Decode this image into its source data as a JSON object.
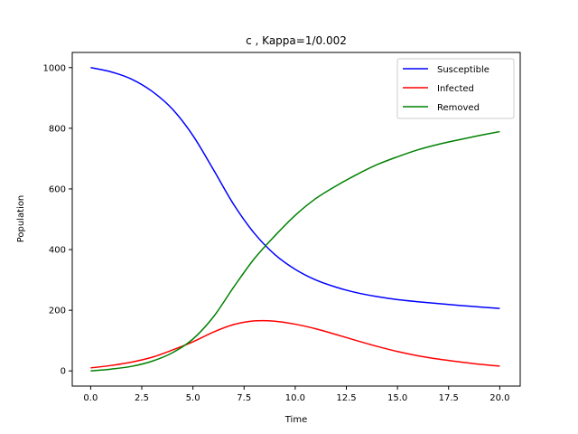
{
  "chart_data": {
    "type": "line",
    "title": "c , Kappa=1/0.002",
    "xlabel": "Time",
    "ylabel": "Population",
    "xlim": [
      -0.9,
      21.0
    ],
    "ylim": [
      -50,
      1050
    ],
    "xticks": [
      0.0,
      2.5,
      5.0,
      7.5,
      10.0,
      12.5,
      15.0,
      17.5,
      20.0
    ],
    "xtick_labels": [
      "0.0",
      "2.5",
      "5.0",
      "7.5",
      "10.0",
      "12.5",
      "15.0",
      "17.5",
      "20.0"
    ],
    "yticks": [
      0,
      200,
      400,
      600,
      800,
      1000
    ],
    "ytick_labels": [
      "0",
      "200",
      "400",
      "600",
      "800",
      "1000"
    ],
    "grid": false,
    "legend_position": "top-right",
    "x": [
      0,
      1,
      2,
      3,
      4,
      5,
      6,
      7,
      8,
      9,
      10,
      11,
      12,
      13,
      14,
      15,
      16,
      17,
      18,
      19,
      20
    ],
    "series": [
      {
        "name": "Susceptible",
        "color": "#0000ff",
        "values": [
          1000,
          986,
          962,
          922,
          863,
          776,
          664,
          548,
          454,
          384,
          335,
          300,
          276,
          258,
          245,
          235,
          228,
          222,
          216,
          211,
          206
        ]
      },
      {
        "name": "Infected",
        "color": "#ff0000",
        "values": [
          10,
          18,
          29,
          45,
          69,
          96,
          128,
          153,
          165,
          164,
          154,
          139,
          120,
          100,
          81,
          64,
          50,
          39,
          30,
          22,
          16
        ]
      },
      {
        "name": "Removed",
        "color": "#008000",
        "values": [
          0,
          6,
          15,
          32,
          60,
          105,
          178,
          277,
          370,
          445,
          513,
          568,
          610,
          647,
          680,
          706,
          729,
          747,
          762,
          776,
          789
        ]
      }
    ]
  }
}
